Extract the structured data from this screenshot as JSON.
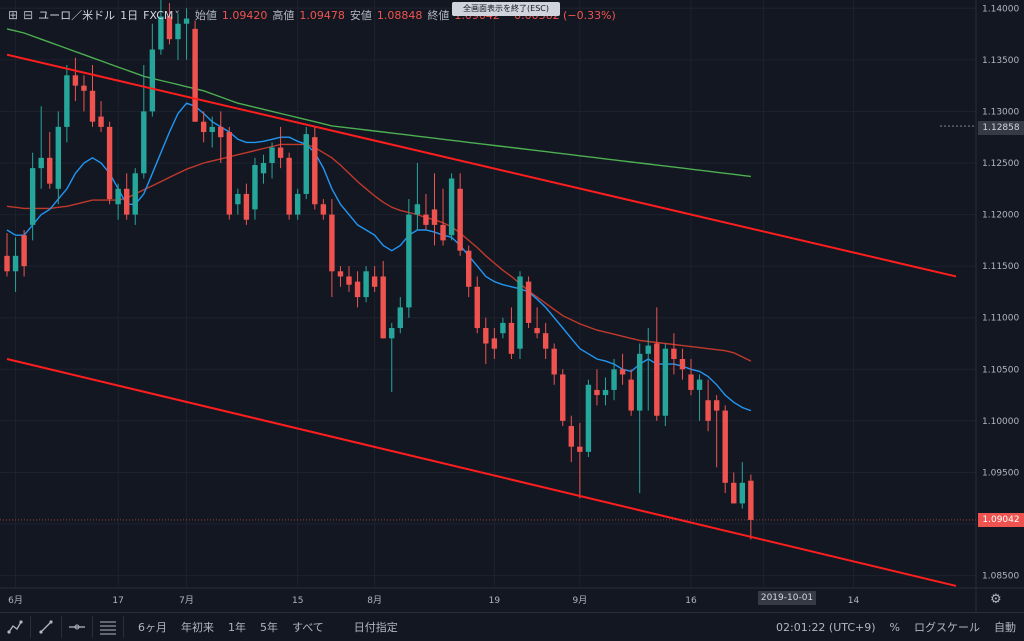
{
  "header": {
    "symbol": "ユーロ／米ドル",
    "interval": "1日",
    "source": "FXCM",
    "open_label": "始値",
    "open": "1.09420",
    "high_label": "高値",
    "high": "1.09478",
    "low_label": "安値",
    "low": "1.08848",
    "close_label": "終値",
    "close": "1.09042",
    "change": "−0.00362 (−0.33%)",
    "exit_fullscreen": "全画面表示を終了(ESC)"
  },
  "price_tags": {
    "crosshair": "1.12858",
    "last": "1.09042"
  },
  "date_tag": "2019-10-01",
  "toolbar": {
    "ranges": [
      "6ヶ月",
      "年初来",
      "1年",
      "5年",
      "すべて"
    ],
    "date_range": "日付指定",
    "time": "02:01:22 (UTC+9)",
    "percent": "%",
    "log_scale": "ログスケール",
    "auto": "自動"
  },
  "colors": {
    "background": "#131722",
    "up": "#26a69a",
    "down": "#ef5350",
    "channel": "#ff1e1e",
    "ma_blue": "#2196f3",
    "ma_red": "#c0392b",
    "ma_green": "#4caf50"
  },
  "chart_data": {
    "type": "candlestick",
    "ylim": [
      1.0838,
      1.1408
    ],
    "y_ticks": [
      "1.14000",
      "1.13500",
      "1.13000",
      "1.12500",
      "1.12000",
      "1.11500",
      "1.11000",
      "1.10500",
      "1.10000",
      "1.09500",
      "1.09000",
      "1.08500"
    ],
    "y_tick_values": [
      1.14,
      1.135,
      1.13,
      1.125,
      1.12,
      1.115,
      1.11,
      1.105,
      1.1,
      1.095,
      1.09,
      1.085
    ],
    "x_ticks": [
      "6月",
      "17",
      "7月",
      "15",
      "8月",
      "19",
      "9月",
      "16",
      "2019-10-01",
      "14"
    ],
    "candles": [
      {
        "o": 1.116,
        "h": 1.1182,
        "l": 1.114,
        "c": 1.1145
      },
      {
        "o": 1.1145,
        "h": 1.1178,
        "l": 1.1125,
        "c": 1.116
      },
      {
        "o": 1.118,
        "h": 1.1185,
        "l": 1.114,
        "c": 1.115
      },
      {
        "o": 1.119,
        "h": 1.126,
        "l": 1.1175,
        "c": 1.1245
      },
      {
        "o": 1.1245,
        "h": 1.1305,
        "l": 1.1225,
        "c": 1.1255
      },
      {
        "o": 1.1255,
        "h": 1.128,
        "l": 1.1225,
        "c": 1.123
      },
      {
        "o": 1.1225,
        "h": 1.13,
        "l": 1.121,
        "c": 1.1285
      },
      {
        "o": 1.1285,
        "h": 1.1345,
        "l": 1.127,
        "c": 1.1335
      },
      {
        "o": 1.1335,
        "h": 1.1352,
        "l": 1.131,
        "c": 1.1325
      },
      {
        "o": 1.1325,
        "h": 1.1335,
        "l": 1.13,
        "c": 1.132
      },
      {
        "o": 1.132,
        "h": 1.1345,
        "l": 1.1285,
        "c": 1.129
      },
      {
        "o": 1.1295,
        "h": 1.131,
        "l": 1.128,
        "c": 1.1285
      },
      {
        "o": 1.1285,
        "h": 1.129,
        "l": 1.121,
        "c": 1.1215
      },
      {
        "o": 1.121,
        "h": 1.123,
        "l": 1.1195,
        "c": 1.1225
      },
      {
        "o": 1.1225,
        "h": 1.124,
        "l": 1.1195,
        "c": 1.12
      },
      {
        "o": 1.12,
        "h": 1.1245,
        "l": 1.119,
        "c": 1.124
      },
      {
        "o": 1.124,
        "h": 1.1345,
        "l": 1.1235,
        "c": 1.13
      },
      {
        "o": 1.13,
        "h": 1.1385,
        "l": 1.1295,
        "c": 1.136
      },
      {
        "o": 1.136,
        "h": 1.1408,
        "l": 1.1355,
        "c": 1.1392
      },
      {
        "o": 1.1392,
        "h": 1.1405,
        "l": 1.1365,
        "c": 1.137
      },
      {
        "o": 1.137,
        "h": 1.1395,
        "l": 1.135,
        "c": 1.1385
      },
      {
        "o": 1.1385,
        "h": 1.14,
        "l": 1.135,
        "c": 1.139
      },
      {
        "o": 1.138,
        "h": 1.1388,
        "l": 1.129,
        "c": 1.129
      },
      {
        "o": 1.129,
        "h": 1.13,
        "l": 1.127,
        "c": 1.128
      },
      {
        "o": 1.128,
        "h": 1.1295,
        "l": 1.1265,
        "c": 1.1285
      },
      {
        "o": 1.1285,
        "h": 1.13,
        "l": 1.125,
        "c": 1.1275
      },
      {
        "o": 1.128,
        "h": 1.1285,
        "l": 1.1195,
        "c": 1.12
      },
      {
        "o": 1.121,
        "h": 1.1225,
        "l": 1.12,
        "c": 1.122
      },
      {
        "o": 1.122,
        "h": 1.123,
        "l": 1.119,
        "c": 1.1195
      },
      {
        "o": 1.1205,
        "h": 1.1255,
        "l": 1.1195,
        "c": 1.1248
      },
      {
        "o": 1.124,
        "h": 1.1258,
        "l": 1.123,
        "c": 1.125
      },
      {
        "o": 1.125,
        "h": 1.127,
        "l": 1.1235,
        "c": 1.1265
      },
      {
        "o": 1.1265,
        "h": 1.1285,
        "l": 1.1245,
        "c": 1.1255
      },
      {
        "o": 1.1255,
        "h": 1.126,
        "l": 1.1195,
        "c": 1.12
      },
      {
        "o": 1.12,
        "h": 1.1225,
        "l": 1.1195,
        "c": 1.122
      },
      {
        "o": 1.122,
        "h": 1.1285,
        "l": 1.1215,
        "c": 1.1278
      },
      {
        "o": 1.1275,
        "h": 1.1285,
        "l": 1.1205,
        "c": 1.121
      },
      {
        "o": 1.121,
        "h": 1.1215,
        "l": 1.1195,
        "c": 1.12
      },
      {
        "o": 1.12,
        "h": 1.1215,
        "l": 1.112,
        "c": 1.1145
      },
      {
        "o": 1.1145,
        "h": 1.115,
        "l": 1.113,
        "c": 1.114
      },
      {
        "o": 1.114,
        "h": 1.115,
        "l": 1.1125,
        "c": 1.1132
      },
      {
        "o": 1.1135,
        "h": 1.1145,
        "l": 1.111,
        "c": 1.112
      },
      {
        "o": 1.112,
        "h": 1.115,
        "l": 1.1115,
        "c": 1.1145
      },
      {
        "o": 1.114,
        "h": 1.115,
        "l": 1.1125,
        "c": 1.113
      },
      {
        "o": 1.114,
        "h": 1.1155,
        "l": 1.108,
        "c": 1.108
      },
      {
        "o": 1.108,
        "h": 1.1095,
        "l": 1.1028,
        "c": 1.109
      },
      {
        "o": 1.109,
        "h": 1.112,
        "l": 1.1085,
        "c": 1.111
      },
      {
        "o": 1.111,
        "h": 1.1215,
        "l": 1.11,
        "c": 1.12
      },
      {
        "o": 1.12,
        "h": 1.125,
        "l": 1.1185,
        "c": 1.121
      },
      {
        "o": 1.12,
        "h": 1.122,
        "l": 1.1185,
        "c": 1.119
      },
      {
        "o": 1.1205,
        "h": 1.124,
        "l": 1.117,
        "c": 1.119
      },
      {
        "o": 1.119,
        "h": 1.1225,
        "l": 1.117,
        "c": 1.1175
      },
      {
        "o": 1.118,
        "h": 1.124,
        "l": 1.1175,
        "c": 1.1235
      },
      {
        "o": 1.1225,
        "h": 1.124,
        "l": 1.116,
        "c": 1.1165
      },
      {
        "o": 1.1165,
        "h": 1.117,
        "l": 1.112,
        "c": 1.113
      },
      {
        "o": 1.113,
        "h": 1.114,
        "l": 1.1085,
        "c": 1.109
      },
      {
        "o": 1.109,
        "h": 1.11,
        "l": 1.1055,
        "c": 1.1075
      },
      {
        "o": 1.108,
        "h": 1.109,
        "l": 1.106,
        "c": 1.107
      },
      {
        "o": 1.1085,
        "h": 1.11,
        "l": 1.108,
        "c": 1.1095
      },
      {
        "o": 1.1095,
        "h": 1.111,
        "l": 1.106,
        "c": 1.1065
      },
      {
        "o": 1.107,
        "h": 1.1145,
        "l": 1.106,
        "c": 1.114
      },
      {
        "o": 1.1135,
        "h": 1.114,
        "l": 1.109,
        "c": 1.1095
      },
      {
        "o": 1.109,
        "h": 1.111,
        "l": 1.108,
        "c": 1.1085
      },
      {
        "o": 1.1085,
        "h": 1.1095,
        "l": 1.106,
        "c": 1.107
      },
      {
        "o": 1.107,
        "h": 1.1075,
        "l": 1.1035,
        "c": 1.1045
      },
      {
        "o": 1.1045,
        "h": 1.105,
        "l": 1.0995,
        "c": 1.1
      },
      {
        "o": 1.0995,
        "h": 1.1005,
        "l": 1.096,
        "c": 1.0975
      },
      {
        "o": 1.0975,
        "h": 1.0998,
        "l": 1.0925,
        "c": 1.097
      },
      {
        "o": 1.097,
        "h": 1.104,
        "l": 1.0965,
        "c": 1.1035
      },
      {
        "o": 1.103,
        "h": 1.105,
        "l": 1.1015,
        "c": 1.1025
      },
      {
        "o": 1.1025,
        "h": 1.1042,
        "l": 1.1015,
        "c": 1.103
      },
      {
        "o": 1.103,
        "h": 1.106,
        "l": 1.102,
        "c": 1.105
      },
      {
        "o": 1.105,
        "h": 1.1065,
        "l": 1.1035,
        "c": 1.1045
      },
      {
        "o": 1.104,
        "h": 1.105,
        "l": 1.1005,
        "c": 1.101
      },
      {
        "o": 1.101,
        "h": 1.1075,
        "l": 1.093,
        "c": 1.1065
      },
      {
        "o": 1.1065,
        "h": 1.109,
        "l": 1.101,
        "c": 1.1073
      },
      {
        "o": 1.1075,
        "h": 1.111,
        "l": 1.1,
        "c": 1.1005
      },
      {
        "o": 1.1005,
        "h": 1.1075,
        "l": 1.0995,
        "c": 1.107
      },
      {
        "o": 1.107,
        "h": 1.1085,
        "l": 1.1045,
        "c": 1.106
      },
      {
        "o": 1.106,
        "h": 1.107,
        "l": 1.104,
        "c": 1.105
      },
      {
        "o": 1.1045,
        "h": 1.106,
        "l": 1.1025,
        "c": 1.103
      },
      {
        "o": 1.103,
        "h": 1.1045,
        "l": 1.1,
        "c": 1.104
      },
      {
        "o": 1.102,
        "h": 1.104,
        "l": 1.099,
        "c": 1.1
      },
      {
        "o": 1.102,
        "h": 1.1025,
        "l": 1.0955,
        "c": 1.101
      },
      {
        "o": 1.101,
        "h": 1.1015,
        "l": 1.093,
        "c": 1.094
      },
      {
        "o": 1.094,
        "h": 1.095,
        "l": 1.092,
        "c": 1.092
      },
      {
        "o": 1.092,
        "h": 1.096,
        "l": 1.0915,
        "c": 1.094
      },
      {
        "o": 1.0942,
        "h": 1.0948,
        "l": 1.0885,
        "c": 1.0904
      }
    ],
    "ma_blue": [
      1.1185,
      1.118,
      1.118,
      1.119,
      1.12,
      1.1205,
      1.1215,
      1.1225,
      1.124,
      1.125,
      1.1255,
      1.125,
      1.124,
      1.1225,
      1.121,
      1.121,
      1.122,
      1.124,
      1.126,
      1.128,
      1.1298,
      1.1308,
      1.1305,
      1.1298,
      1.129,
      1.1285,
      1.128,
      1.1273,
      1.127,
      1.127,
      1.1271,
      1.1273,
      1.1275,
      1.1275,
      1.1271,
      1.1268,
      1.126,
      1.1245,
      1.1225,
      1.121,
      1.12,
      1.119,
      1.1185,
      1.118,
      1.117,
      1.1165,
      1.117,
      1.118,
      1.1185,
      1.1185,
      1.1183,
      1.118,
      1.1178,
      1.117,
      1.116,
      1.115,
      1.114,
      1.1135,
      1.1132,
      1.113,
      1.1128,
      1.1125,
      1.1118,
      1.111,
      1.11,
      1.109,
      1.108,
      1.107,
      1.1065,
      1.106,
      1.1058,
      1.1055,
      1.105,
      1.1048,
      1.1055,
      1.106,
      1.1055,
      1.1055,
      1.1055,
      1.1053,
      1.105,
      1.1048,
      1.1043,
      1.1035,
      1.1025,
      1.1018,
      1.1013,
      1.101
    ],
    "ma_red": [
      1.1208,
      1.1207,
      1.1206,
      1.1206,
      1.1206,
      1.1206,
      1.1207,
      1.1208,
      1.121,
      1.1212,
      1.1214,
      1.1214,
      1.1214,
      1.1214,
      1.1216,
      1.122,
      1.1224,
      1.1228,
      1.1232,
      1.1236,
      1.124,
      1.1244,
      1.1247,
      1.125,
      1.1252,
      1.1254,
      1.1256,
      1.1258,
      1.126,
      1.1262,
      1.1264,
      1.1266,
      1.1268,
      1.1268,
      1.1268,
      1.1268,
      1.1265,
      1.126,
      1.1255,
      1.1248,
      1.124,
      1.1232,
      1.1225,
      1.1218,
      1.1212,
      1.1207,
      1.1204,
      1.1202,
      1.12,
      1.1197,
      1.1195,
      1.1192,
      1.1188,
      1.1182,
      1.1175,
      1.1168,
      1.116,
      1.1153,
      1.1146,
      1.114,
      1.1133,
      1.1126,
      1.112,
      1.1114,
      1.1108,
      1.1102,
      1.1098,
      1.1094,
      1.1091,
      1.1088,
      1.1086,
      1.1084,
      1.1082,
      1.108,
      1.1078,
      1.1077,
      1.1076,
      1.1075,
      1.1074,
      1.1073,
      1.1072,
      1.1071,
      1.107,
      1.1069,
      1.1068,
      1.1066,
      1.1062,
      1.1058
    ],
    "ma_green": [
      1.138,
      1.1378,
      1.1376,
      1.1373,
      1.137,
      1.1367,
      1.1364,
      1.1361,
      1.1358,
      1.1355,
      1.1352,
      1.1349,
      1.1346,
      1.1343,
      1.134,
      1.1337,
      1.1334,
      1.1332,
      1.133,
      1.1328,
      1.1326,
      1.1324,
      1.1322,
      1.132,
      1.1317,
      1.1314,
      1.1311,
      1.1308,
      1.1306,
      1.1304,
      1.1302,
      1.13,
      1.1298,
      1.1296,
      1.1294,
      1.1292,
      1.129,
      1.1288,
      1.1286,
      1.1285,
      1.1284,
      1.1283,
      1.1282,
      1.1281,
      1.128,
      1.1279,
      1.1278,
      1.1277,
      1.1276,
      1.1275,
      1.1274,
      1.1273,
      1.1272,
      1.1271,
      1.127,
      1.1269,
      1.1268,
      1.1267,
      1.1266,
      1.1265,
      1.1264,
      1.1263,
      1.1262,
      1.1261,
      1.126,
      1.1259,
      1.1258,
      1.1257,
      1.1256,
      1.1255,
      1.1254,
      1.1253,
      1.1252,
      1.1251,
      1.125,
      1.1249,
      1.1248,
      1.1247,
      1.1246,
      1.1245,
      1.1244,
      1.1243,
      1.1242,
      1.1241,
      1.124,
      1.1239,
      1.1238,
      1.1237
    ],
    "channel_upper": {
      "x0_index": 0,
      "y0": 1.1355,
      "x1_index": 111,
      "y1": 1.114
    },
    "channel_lower": {
      "x0_index": 0,
      "y0": 1.106,
      "x1_index": 111,
      "y1": 1.084
    }
  }
}
